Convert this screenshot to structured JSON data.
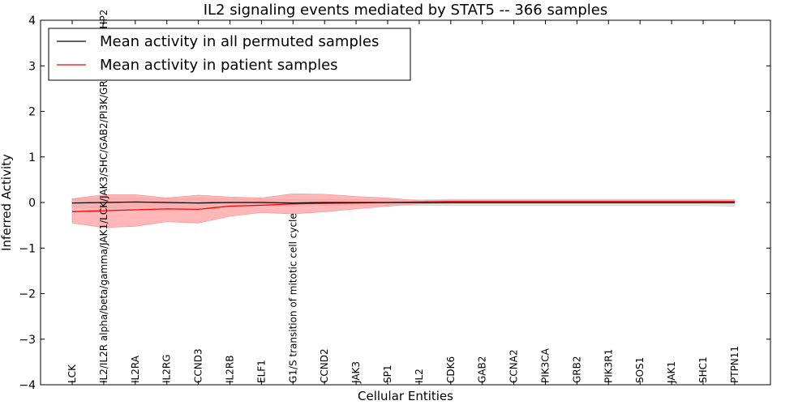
{
  "chart_data": {
    "type": "line",
    "title": "IL2 signaling events mediated by STAT5 -- 366 samples",
    "xlabel": "Cellular Entities",
    "ylabel": "Inferred Activity",
    "ylim": [
      -4,
      4
    ],
    "yticks": [
      -4,
      -3,
      -2,
      -1,
      0,
      1,
      2,
      3,
      4
    ],
    "ytick_labels": [
      "−4",
      "−3",
      "−2",
      "−1",
      "0",
      "1",
      "2",
      "3",
      "4"
    ],
    "categories": [
      "LCK",
      "IL2/IL2R alpha/beta/gamma/JAK1/LCK/JAK3/SHC/GAB2/PI3K/GRB2/SOS1/SHP2",
      "IL2RA",
      "IL2RG",
      "CCND3",
      "IL2RB",
      "ELF1",
      "G1/S transition of mitotic cell cycle",
      "CCND2",
      "JAK3",
      "SP1",
      "IL2",
      "CDK6",
      "GAB2",
      "CCNA2",
      "PIK3CA",
      "GRB2",
      "PIK3R1",
      "SOS1",
      "JAK1",
      "SHC1",
      "PTPN11"
    ],
    "series": [
      {
        "name": "Mean activity in all permuted samples",
        "color": "#000000",
        "values": [
          -0.01,
          0.0,
          0.01,
          0.0,
          -0.01,
          0.0,
          0.0,
          -0.01,
          0.0,
          0.0,
          0.0,
          0.0,
          0.0,
          0.0,
          0.0,
          0.0,
          0.0,
          0.0,
          0.0,
          0.0,
          0.0,
          0.0
        ],
        "lower": [
          -0.1,
          -0.12,
          -0.1,
          -0.09,
          -0.11,
          -0.08,
          -0.07,
          -0.08,
          -0.07,
          -0.06,
          -0.06,
          -0.06,
          -0.07,
          -0.07,
          -0.07,
          -0.07,
          -0.07,
          -0.07,
          -0.07,
          -0.07,
          -0.07,
          -0.08
        ],
        "upper": [
          0.08,
          0.1,
          0.1,
          0.08,
          0.09,
          0.08,
          0.07,
          0.07,
          0.07,
          0.06,
          0.06,
          0.06,
          0.07,
          0.07,
          0.07,
          0.07,
          0.07,
          0.07,
          0.07,
          0.07,
          0.07,
          0.07
        ],
        "band_color": "#d0d0d0"
      },
      {
        "name": "Mean activity in patient samples",
        "color": "#ff0000",
        "values": [
          -0.2,
          -0.18,
          -0.16,
          -0.14,
          -0.15,
          -0.08,
          -0.06,
          -0.03,
          -0.02,
          -0.01,
          0.0,
          0.01,
          0.02,
          0.02,
          0.02,
          0.02,
          0.02,
          0.02,
          0.02,
          0.02,
          0.02,
          0.02
        ],
        "lower": [
          -0.45,
          -0.55,
          -0.52,
          -0.42,
          -0.45,
          -0.3,
          -0.22,
          -0.25,
          -0.2,
          -0.14,
          -0.08,
          -0.03,
          -0.02,
          -0.02,
          -0.02,
          -0.02,
          -0.02,
          -0.02,
          -0.02,
          -0.02,
          -0.02,
          -0.02
        ],
        "upper": [
          0.08,
          0.17,
          0.17,
          0.1,
          0.16,
          0.12,
          0.1,
          0.19,
          0.18,
          0.13,
          0.1,
          0.04,
          0.05,
          0.05,
          0.05,
          0.05,
          0.05,
          0.05,
          0.05,
          0.05,
          0.05,
          0.05
        ],
        "band_color": "#ff9999"
      }
    ],
    "legend_position": "top-left",
    "grid": false
  }
}
